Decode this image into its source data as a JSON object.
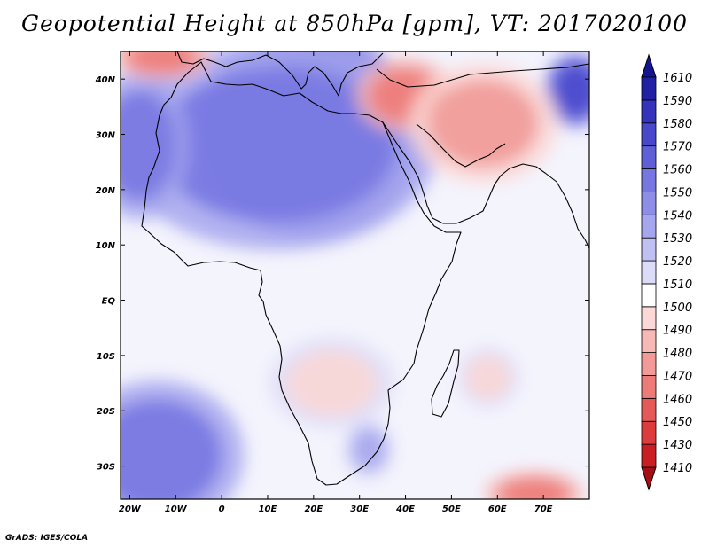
{
  "title": "Geopotential Height at 850hPa [gpm], VT: 2017020100",
  "footer": "GrADS: IGES/COLA",
  "map": {
    "projection": "latlon",
    "lon_range": [
      -22,
      80
    ],
    "lat_range": [
      -36,
      45
    ],
    "lat_ticks": [
      {
        "value": 40,
        "label": "40N"
      },
      {
        "value": 30,
        "label": "30N"
      },
      {
        "value": 20,
        "label": "20N"
      },
      {
        "value": 10,
        "label": "10N"
      },
      {
        "value": 0,
        "label": "EQ"
      },
      {
        "value": -10,
        "label": "10S"
      },
      {
        "value": -20,
        "label": "20S"
      },
      {
        "value": -30,
        "label": "30S"
      }
    ],
    "lon_ticks": [
      {
        "value": -20,
        "label": "20W"
      },
      {
        "value": -10,
        "label": "10W"
      },
      {
        "value": 0,
        "label": "0"
      },
      {
        "value": 10,
        "label": "10E"
      },
      {
        "value": 20,
        "label": "20E"
      },
      {
        "value": 30,
        "label": "30E"
      },
      {
        "value": 40,
        "label": "40E"
      },
      {
        "value": 50,
        "label": "50E"
      },
      {
        "value": 60,
        "label": "60E"
      },
      {
        "value": 70,
        "label": "70E"
      }
    ],
    "features": [
      {
        "name": "high-sahara",
        "lon": 19,
        "lat": 30,
        "rx": 18,
        "ry": 14,
        "level": 1570
      },
      {
        "name": "high-sahara-west",
        "lon": 12,
        "lat": 28,
        "rx": 26,
        "ry": 14,
        "level": 1550
      },
      {
        "name": "high-atlantic-nw",
        "lon": -18,
        "lat": 28,
        "rx": 8,
        "ry": 10,
        "level": 1550
      },
      {
        "name": "high-south-atlantic",
        "lon": -14,
        "lat": -28,
        "rx": 14,
        "ry": 10,
        "level": 1550
      },
      {
        "name": "high-south-africa-east",
        "lon": 32,
        "lat": -27,
        "rx": 4,
        "ry": 4,
        "level": 1530
      },
      {
        "name": "high-tibet-edge",
        "lon": 77,
        "lat": 38,
        "rx": 5,
        "ry": 5,
        "level": 1570
      },
      {
        "name": "low-middle-east",
        "lon": 40,
        "lat": 37,
        "rx": 8,
        "ry": 5,
        "level": 1460
      },
      {
        "name": "low-iran",
        "lon": 57,
        "lat": 32,
        "rx": 12,
        "ry": 8,
        "level": 1470
      },
      {
        "name": "low-zambia",
        "lon": 24,
        "lat": -15,
        "rx": 10,
        "ry": 6,
        "level": 1490
      },
      {
        "name": "low-indian-ocean",
        "lon": 58,
        "lat": -14,
        "rx": 5,
        "ry": 4,
        "level": 1490
      },
      {
        "name": "low-mediterranean-nw",
        "lon": -13,
        "lat": 44,
        "rx": 8,
        "ry": 3,
        "level": 1460
      },
      {
        "name": "low-southern-ocean",
        "lon": 68,
        "lat": -35,
        "rx": 8,
        "ry": 3,
        "level": 1460
      }
    ]
  },
  "colorbar": {
    "levels": [
      1410,
      1430,
      1450,
      1460,
      1470,
      1480,
      1490,
      1500,
      1510,
      1520,
      1530,
      1540,
      1550,
      1560,
      1570,
      1580,
      1590,
      1610
    ],
    "colors": [
      "#a50f15",
      "#c81e24",
      "#dc3c3c",
      "#e55a58",
      "#ed7b78",
      "#f19a97",
      "#f6b9b6",
      "#fbd8d6",
      "#ffffff",
      "#dcdcf8",
      "#c0c0f2",
      "#a6a6ee",
      "#8e8ee8",
      "#7777e2",
      "#5f5fd8",
      "#4848cc",
      "#3333bb",
      "#2020a5",
      "#141492"
    ]
  }
}
